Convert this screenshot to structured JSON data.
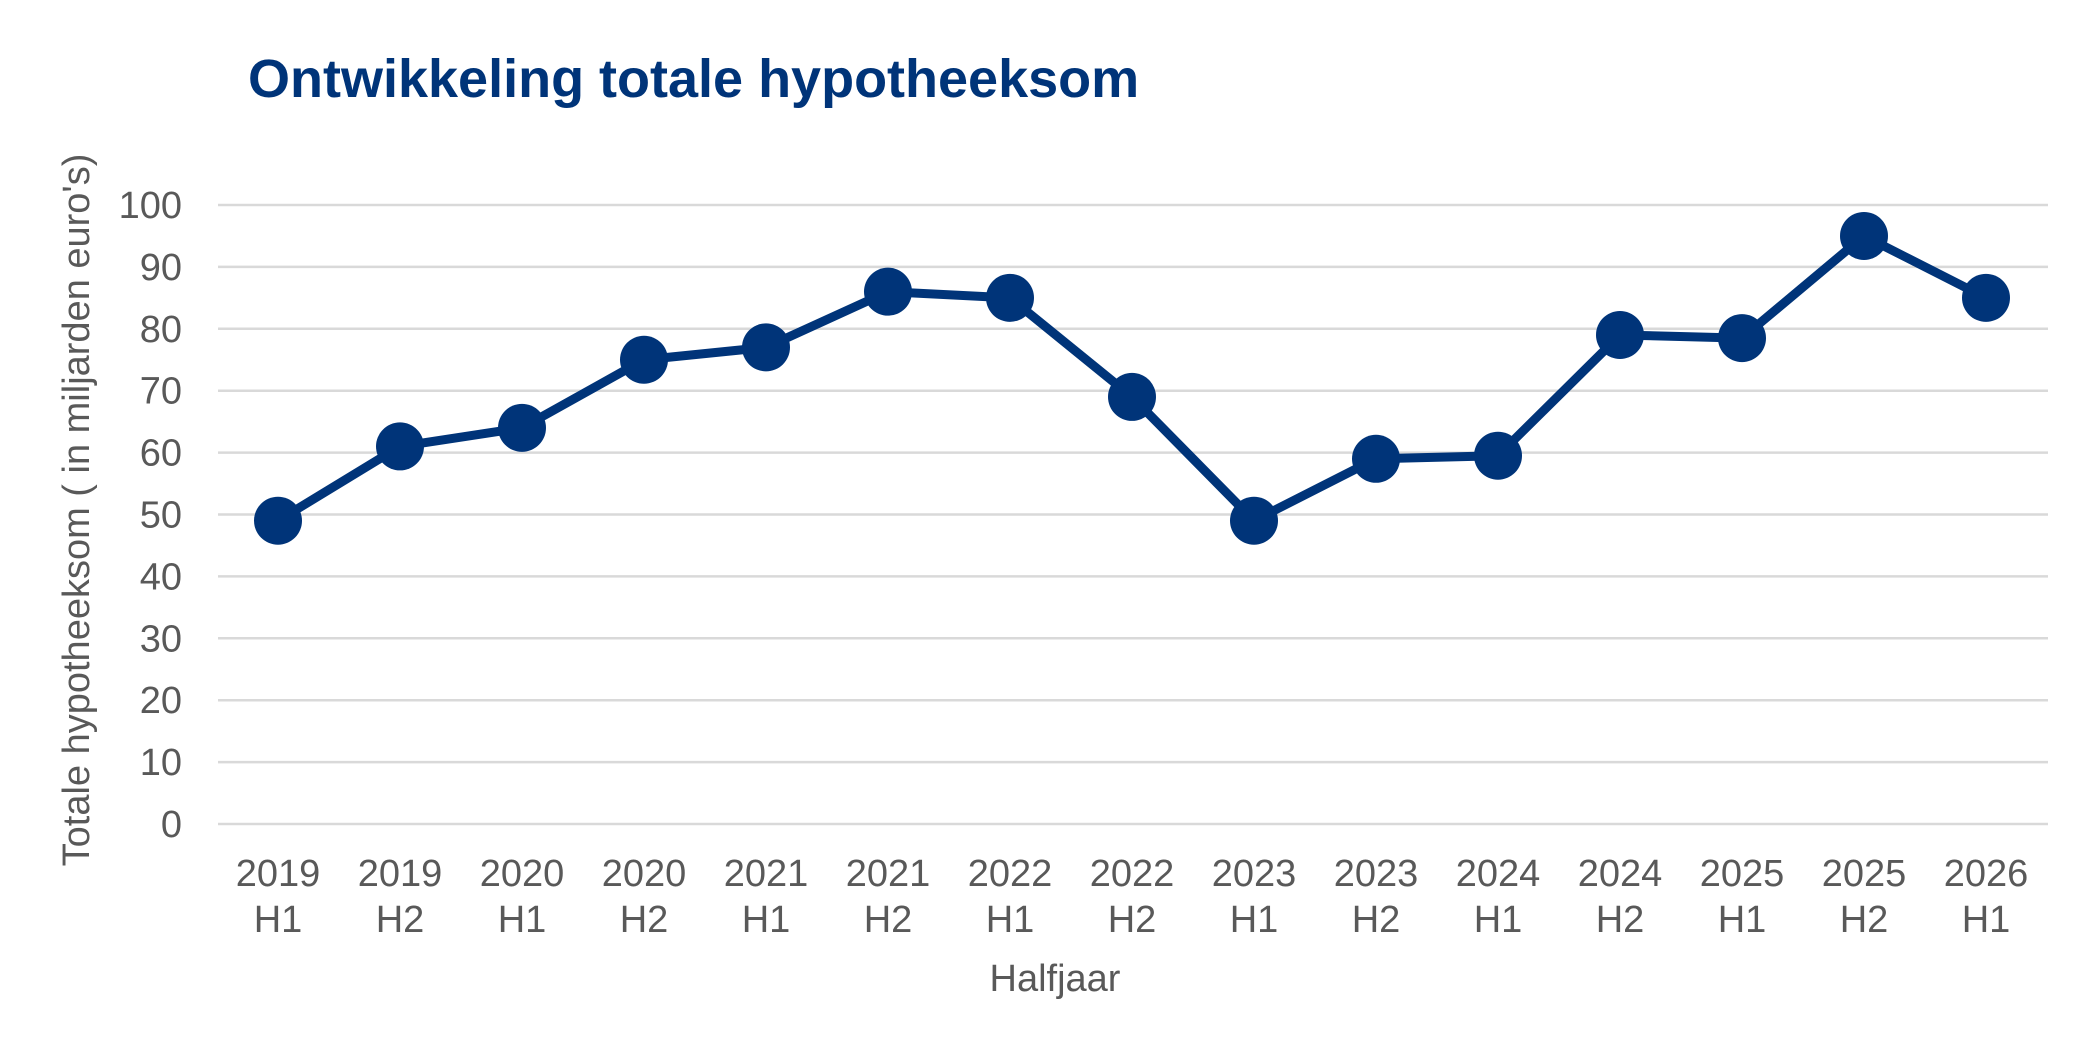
{
  "colors": {
    "series": "#003479",
    "title": "#003479",
    "grid": "#d9d9d9",
    "text": "#595959"
  },
  "chart_data": {
    "type": "line",
    "title": "Ontwikkeling totale hypotheeksom",
    "xlabel": "Halfjaar",
    "ylabel": "Totale hypotheeksom ( in miljarden euro's)",
    "categories": [
      [
        "2019",
        "H1"
      ],
      [
        "2019",
        "H2"
      ],
      [
        "2020",
        "H1"
      ],
      [
        "2020",
        "H2"
      ],
      [
        "2021",
        "H1"
      ],
      [
        "2021",
        "H2"
      ],
      [
        "2022",
        "H1"
      ],
      [
        "2022",
        "H2"
      ],
      [
        "2023",
        "H1"
      ],
      [
        "2023",
        "H2"
      ],
      [
        "2024",
        "H1"
      ],
      [
        "2024",
        "H2"
      ],
      [
        "2025",
        "H1"
      ],
      [
        "2025",
        "H2"
      ],
      [
        "2026",
        "H1"
      ]
    ],
    "values": [
      49,
      61,
      64,
      75,
      77,
      86,
      85,
      69,
      49,
      59,
      59.5,
      79,
      78.5,
      95,
      85
    ],
    "ylim": [
      0,
      100
    ],
    "yticks": [
      0,
      10,
      20,
      30,
      40,
      50,
      60,
      70,
      80,
      90,
      100
    ],
    "grid": true,
    "legend": "none",
    "markers": true
  }
}
